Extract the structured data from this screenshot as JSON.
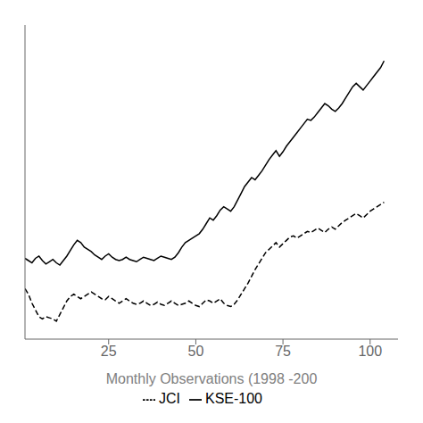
{
  "chart_data": {
    "type": "line",
    "xlabel": "Monthly Observations (1998 -200",
    "x": [
      1,
      2,
      3,
      4,
      5,
      6,
      7,
      8,
      9,
      10,
      11,
      12,
      13,
      14,
      15,
      16,
      17,
      18,
      19,
      20,
      21,
      22,
      23,
      24,
      25,
      26,
      27,
      28,
      29,
      30,
      31,
      32,
      33,
      34,
      35,
      36,
      37,
      38,
      39,
      40,
      41,
      42,
      43,
      44,
      45,
      46,
      47,
      48,
      49,
      50,
      51,
      52,
      53,
      54,
      55,
      56,
      57,
      58,
      59,
      60,
      61,
      62,
      63,
      64,
      65,
      66,
      67,
      68,
      69,
      70,
      71,
      72,
      73,
      74,
      75,
      76,
      77,
      78,
      79,
      80,
      81,
      82,
      83,
      84,
      85,
      86,
      87,
      88,
      89,
      90,
      91,
      92,
      93,
      94,
      95,
      96,
      97,
      98,
      99,
      100,
      101,
      102,
      103,
      104
    ],
    "series": [
      {
        "name": "KSE-100",
        "color": "#000000",
        "line_style": "solid",
        "values": [
          62,
          60,
          58,
          62,
          64,
          60,
          57,
          59,
          61,
          58,
          56,
          60,
          64,
          69,
          74,
          78,
          76,
          72,
          70,
          68,
          65,
          63,
          61,
          64,
          66,
          63,
          61,
          60,
          61,
          63,
          61,
          60,
          59,
          61,
          63,
          62,
          61,
          60,
          62,
          64,
          63,
          62,
          61,
          63,
          67,
          72,
          76,
          78,
          80,
          82,
          84,
          88,
          93,
          98,
          96,
          100,
          105,
          108,
          106,
          104,
          108,
          114,
          120,
          126,
          130,
          134,
          132,
          136,
          140,
          145,
          150,
          154,
          158,
          153,
          157,
          162,
          166,
          170,
          174,
          178,
          182,
          186,
          185,
          188,
          192,
          196,
          200,
          198,
          195,
          193,
          196,
          200,
          205,
          210,
          215,
          218,
          215,
          212,
          216,
          220,
          224,
          228,
          232,
          238
        ]
      },
      {
        "name": "JCI",
        "color": "#000000",
        "line_style": "dashed",
        "values": [
          35,
          30,
          22,
          16,
          10,
          8,
          10,
          9,
          8,
          6,
          12,
          18,
          24,
          28,
          30,
          28,
          26,
          28,
          30,
          32,
          30,
          28,
          26,
          25,
          28,
          26,
          24,
          22,
          24,
          26,
          24,
          22,
          21,
          22,
          24,
          22,
          20,
          21,
          23,
          21,
          20,
          22,
          24,
          22,
          20,
          21,
          22,
          24,
          22,
          20,
          19,
          22,
          25,
          24,
          22,
          24,
          26,
          22,
          20,
          19,
          21,
          25,
          30,
          35,
          40,
          46,
          52,
          57,
          62,
          67,
          70,
          73,
          76,
          72,
          75,
          78,
          81,
          82,
          80,
          82,
          84,
          86,
          85,
          87,
          89,
          87,
          85,
          88,
          90,
          88,
          91,
          94,
          96,
          98,
          100,
          102,
          100,
          98,
          101,
          104,
          106,
          108,
          110,
          112
        ]
      }
    ],
    "xlim": [
      1,
      108
    ],
    "xticks": [
      25,
      50,
      75,
      100
    ],
    "ylim": [
      -10,
      270
    ],
    "tick_labels": "x",
    "legend": "bottom",
    "grid": false
  }
}
